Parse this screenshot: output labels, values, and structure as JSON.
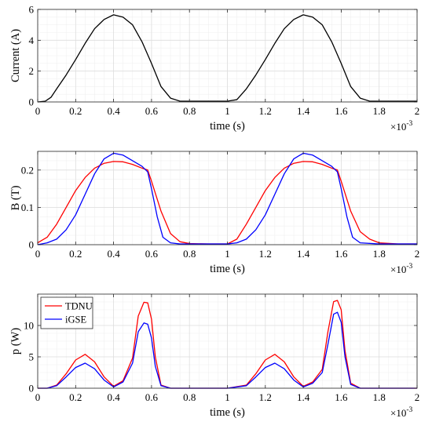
{
  "chart_data": [
    {
      "type": "line",
      "ylabel": "Current (A)",
      "xlabel": "time (s)",
      "x_multiplier": "×10",
      "x_exponent": "-3",
      "xlim": [
        0,
        2
      ],
      "ylim": [
        0,
        6
      ],
      "x_ticks": [
        "0",
        "0.2",
        "0.4",
        "0.6",
        "0.8",
        "1",
        "1.2",
        "1.4",
        "1.6",
        "1.8",
        "2"
      ],
      "y_ticks": [
        "0",
        "2",
        "4",
        "6"
      ],
      "grid": true,
      "legend": null,
      "series": [
        {
          "color": "#000000",
          "x": [
            0,
            0.04,
            0.07,
            0.1,
            0.15,
            0.2,
            0.25,
            0.3,
            0.35,
            0.4,
            0.45,
            0.5,
            0.55,
            0.6,
            0.65,
            0.7,
            0.75,
            0.8,
            0.9,
            1.0,
            1.05,
            1.1,
            1.15,
            1.2,
            1.25,
            1.3,
            1.35,
            1.4,
            1.45,
            1.5,
            1.55,
            1.6,
            1.65,
            1.7,
            1.75,
            1.8,
            1.9,
            2.0
          ],
          "values": [
            0,
            0.05,
            0.3,
            0.85,
            1.75,
            2.75,
            3.8,
            4.75,
            5.35,
            5.65,
            5.5,
            5.0,
            3.9,
            2.5,
            1.0,
            0.25,
            0.05,
            0.05,
            0.05,
            0.05,
            0.15,
            0.85,
            1.75,
            2.75,
            3.8,
            4.75,
            5.35,
            5.65,
            5.5,
            5.0,
            3.9,
            2.5,
            1.0,
            0.25,
            0.05,
            0.05,
            0.05,
            0.05
          ]
        }
      ]
    },
    {
      "type": "line",
      "ylabel": "B (T)",
      "xlabel": "time (s)",
      "x_multiplier": "×10",
      "x_exponent": "-3",
      "xlim": [
        0,
        2
      ],
      "ylim": [
        0,
        0.25
      ],
      "x_ticks": [
        "0",
        "0.2",
        "0.4",
        "0.6",
        "0.8",
        "1",
        "1.2",
        "1.4",
        "1.6",
        "1.8",
        "2"
      ],
      "y_ticks": [
        "0",
        "0.1",
        "0.2"
      ],
      "grid": true,
      "legend": null,
      "series": [
        {
          "color": "#ff0000",
          "x": [
            0,
            0.05,
            0.1,
            0.15,
            0.2,
            0.25,
            0.3,
            0.35,
            0.4,
            0.45,
            0.5,
            0.55,
            0.58,
            0.6,
            0.65,
            0.7,
            0.75,
            0.8,
            0.9,
            1.0,
            1.05,
            1.1,
            1.15,
            1.2,
            1.25,
            1.3,
            1.35,
            1.4,
            1.45,
            1.5,
            1.55,
            1.58,
            1.6,
            1.65,
            1.7,
            1.75,
            1.8,
            1.9,
            2.0
          ],
          "values": [
            0.005,
            0.02,
            0.055,
            0.1,
            0.145,
            0.18,
            0.205,
            0.218,
            0.223,
            0.222,
            0.215,
            0.205,
            0.2,
            0.17,
            0.09,
            0.03,
            0.008,
            0.003,
            0.002,
            0.002,
            0.015,
            0.055,
            0.1,
            0.145,
            0.18,
            0.205,
            0.218,
            0.223,
            0.222,
            0.215,
            0.205,
            0.2,
            0.17,
            0.09,
            0.035,
            0.015,
            0.005,
            0.002,
            0.002
          ]
        },
        {
          "color": "#0000ff",
          "x": [
            0,
            0.05,
            0.1,
            0.15,
            0.2,
            0.25,
            0.3,
            0.35,
            0.4,
            0.45,
            0.5,
            0.55,
            0.58,
            0.6,
            0.63,
            0.66,
            0.7,
            0.75,
            0.8,
            0.9,
            1.0,
            1.05,
            1.1,
            1.15,
            1.2,
            1.25,
            1.3,
            1.35,
            1.4,
            1.45,
            1.5,
            1.55,
            1.58,
            1.6,
            1.63,
            1.66,
            1.7,
            1.8,
            1.9,
            2.0
          ],
          "values": [
            0,
            0.005,
            0.015,
            0.04,
            0.08,
            0.135,
            0.19,
            0.23,
            0.245,
            0.24,
            0.225,
            0.21,
            0.195,
            0.15,
            0.075,
            0.02,
            0.005,
            0.002,
            0.002,
            0.002,
            0.002,
            0.005,
            0.015,
            0.04,
            0.08,
            0.135,
            0.19,
            0.23,
            0.245,
            0.24,
            0.225,
            0.21,
            0.195,
            0.15,
            0.075,
            0.02,
            0.005,
            0.002,
            0.002,
            0.002
          ]
        }
      ]
    },
    {
      "type": "line",
      "ylabel": "p (W)",
      "xlabel": "time (s)",
      "x_multiplier": "×10",
      "x_exponent": "-3",
      "xlim": [
        0,
        2
      ],
      "ylim": [
        0,
        15
      ],
      "x_ticks": [
        "0",
        "0.2",
        "0.4",
        "0.6",
        "0.8",
        "1",
        "1.2",
        "1.4",
        "1.6",
        "1.8",
        "2"
      ],
      "y_ticks": [
        "0",
        "5",
        "10"
      ],
      "grid": true,
      "legend": "top-left",
      "series": [
        {
          "name": "TDNU",
          "color": "#ff0000",
          "x": [
            0,
            0.05,
            0.1,
            0.15,
            0.2,
            0.25,
            0.3,
            0.35,
            0.4,
            0.45,
            0.5,
            0.53,
            0.56,
            0.58,
            0.6,
            0.62,
            0.65,
            0.7,
            0.8,
            1.0,
            1.1,
            1.15,
            1.2,
            1.25,
            1.3,
            1.35,
            1.4,
            1.45,
            1.5,
            1.53,
            1.56,
            1.58,
            1.6,
            1.62,
            1.65,
            1.7,
            1.8,
            2.0
          ],
          "values": [
            0,
            0,
            0.5,
            2.3,
            4.5,
            5.4,
            4.2,
            1.8,
            0.3,
            1.2,
            4.8,
            11.5,
            13.7,
            13.6,
            11.0,
            5.0,
            0.5,
            0,
            0,
            0,
            0.5,
            2.3,
            4.5,
            5.4,
            4.2,
            1.8,
            0.3,
            1.0,
            3.0,
            9.0,
            13.8,
            14.0,
            12.5,
            6.0,
            0.8,
            0,
            0,
            0
          ]
        },
        {
          "name": "iGSE",
          "color": "#0000ff",
          "x": [
            0,
            0.05,
            0.1,
            0.15,
            0.2,
            0.25,
            0.3,
            0.35,
            0.4,
            0.45,
            0.5,
            0.53,
            0.56,
            0.58,
            0.6,
            0.62,
            0.65,
            0.7,
            0.8,
            1.0,
            1.1,
            1.15,
            1.2,
            1.25,
            1.3,
            1.35,
            1.4,
            1.45,
            1.5,
            1.53,
            1.56,
            1.58,
            1.6,
            1.62,
            1.65,
            1.7,
            1.8,
            2.0
          ],
          "values": [
            0,
            0,
            0.4,
            1.8,
            3.3,
            4.0,
            3.1,
            1.3,
            0.2,
            1.0,
            4.0,
            9.0,
            10.4,
            10.2,
            8.0,
            3.5,
            0.4,
            0,
            0,
            0,
            0.4,
            1.8,
            3.3,
            4.0,
            3.1,
            1.3,
            0.2,
            0.8,
            2.5,
            7.0,
            11.8,
            12.1,
            10.5,
            5.0,
            0.6,
            0,
            0,
            0
          ]
        }
      ]
    }
  ]
}
